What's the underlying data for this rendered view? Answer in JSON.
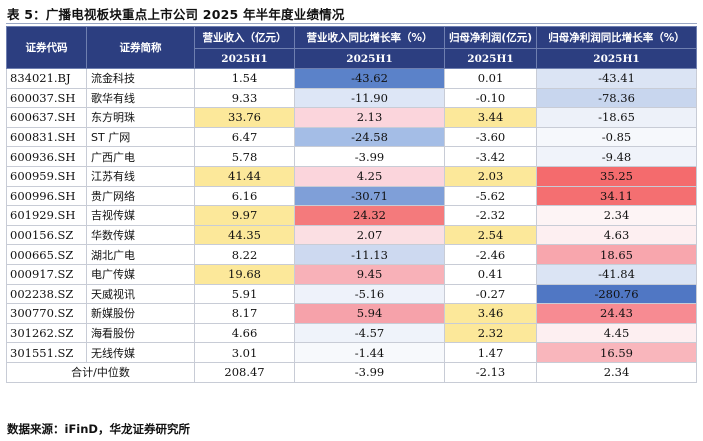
{
  "title": "表 5：广播电视板块重点上市公司 2025 年半年度业绩情况",
  "header": {
    "code_label": "证券代码",
    "name_label": "证券简称",
    "revenue_label": "营业收入（亿元）",
    "revenue_yoy_label": "营业收入同比增长率（%）",
    "profit_label": "归母净利润(亿元)",
    "profit_yoy_label": "归母净利润同比增长率（%）",
    "period": "2025H1"
  },
  "rows": [
    {
      "code": "834021.BJ",
      "name": "流金科技",
      "revenue": "1.54",
      "revenue_yoy": "-43.62",
      "profit": "0.01",
      "profit_yoy": "-43.41"
    },
    {
      "code": "600037.SH",
      "name": "歌华有线",
      "revenue": "9.33",
      "revenue_yoy": "-11.90",
      "profit": "-0.10",
      "profit_yoy": "-78.36"
    },
    {
      "code": "600637.SH",
      "name": "东方明珠",
      "revenue": "33.76",
      "revenue_yoy": "2.13",
      "profit": "3.44",
      "profit_yoy": "-18.65"
    },
    {
      "code": "600831.SH",
      "name": "ST 广网",
      "revenue": "6.47",
      "revenue_yoy": "-24.58",
      "profit": "-3.60",
      "profit_yoy": "-0.85"
    },
    {
      "code": "600936.SH",
      "name": "广西广电",
      "revenue": "5.78",
      "revenue_yoy": "-3.99",
      "profit": "-3.42",
      "profit_yoy": "-9.48"
    },
    {
      "code": "600959.SH",
      "name": "江苏有线",
      "revenue": "41.44",
      "revenue_yoy": "4.25",
      "profit": "2.03",
      "profit_yoy": "35.25"
    },
    {
      "code": "600996.SH",
      "name": "贵广网络",
      "revenue": "6.16",
      "revenue_yoy": "-30.71",
      "profit": "-5.62",
      "profit_yoy": "34.11"
    },
    {
      "code": "601929.SH",
      "name": "吉视传媒",
      "revenue": "9.97",
      "revenue_yoy": "24.32",
      "profit": "-2.32",
      "profit_yoy": "2.34"
    },
    {
      "code": "000156.SZ",
      "name": "华数传媒",
      "revenue": "44.35",
      "revenue_yoy": "2.07",
      "profit": "2.54",
      "profit_yoy": "4.63"
    },
    {
      "code": "000665.SZ",
      "name": "湖北广电",
      "revenue": "8.22",
      "revenue_yoy": "-11.13",
      "profit": "-2.46",
      "profit_yoy": "18.65"
    },
    {
      "code": "000917.SZ",
      "name": "电广传媒",
      "revenue": "19.68",
      "revenue_yoy": "9.45",
      "profit": "0.41",
      "profit_yoy": "-41.84"
    },
    {
      "code": "002238.SZ",
      "name": "天威视讯",
      "revenue": "5.91",
      "revenue_yoy": "-5.16",
      "profit": "-0.27",
      "profit_yoy": "-280.76"
    },
    {
      "code": "300770.SZ",
      "name": "新媒股份",
      "revenue": "8.17",
      "revenue_yoy": "5.94",
      "profit": "3.46",
      "profit_yoy": "24.43"
    },
    {
      "code": "301262.SZ",
      "name": "海看股份",
      "revenue": "4.66",
      "revenue_yoy": "-4.57",
      "profit": "2.32",
      "profit_yoy": "4.45"
    },
    {
      "code": "301551.SZ",
      "name": "无线传媒",
      "revenue": "3.01",
      "revenue_yoy": "-1.44",
      "profit": "1.47",
      "profit_yoy": "16.59"
    }
  ],
  "total": {
    "label": "合计/中位数",
    "revenue": "208.47",
    "revenue_yoy": "-3.99",
    "profit": "-2.13",
    "profit_yoy": "2.34"
  },
  "cell_colors": {
    "revenue": [
      "",
      "",
      "#fce89a",
      "",
      "",
      "#fce89a",
      "",
      "#fce89a",
      "#fce89a",
      "",
      "#fce89a",
      "",
      "",
      "",
      ""
    ],
    "revenue_yoy": [
      "#5b82c9",
      "#dde6f6",
      "#fbd5dc",
      "#a4bde6",
      "",
      "#fbd5dc",
      "#7f9fd8",
      "#f47a7c",
      "#fbdfe3",
      "#cdd9f0",
      "#f8b1b8",
      "#eef2fa",
      "#f6a2aa",
      "#eff3fa",
      "#f7f9fc"
    ],
    "profit": [
      "",
      "",
      "#fce89a",
      "",
      "",
      "#fce89a",
      "",
      "",
      "#fce89a",
      "",
      "",
      "",
      "#fce89a",
      "#fce89a",
      ""
    ],
    "profit_yoy": [
      "#dbe4f4",
      "#c8d6ee",
      "#edf1f9",
      "#f6f8fc",
      "#f0f3fa",
      "#f46b6d",
      "#f46f71",
      "#fdf4f5",
      "#fdeff1",
      "#f8a6ad",
      "#dbe4f4",
      "#5077c4",
      "#f78b92",
      "#fdeff1",
      "#f9b6bc"
    ],
    "total": [
      "",
      "",
      "",
      ""
    ]
  },
  "source": "数据来源：iFinD，华龙证券研究所"
}
